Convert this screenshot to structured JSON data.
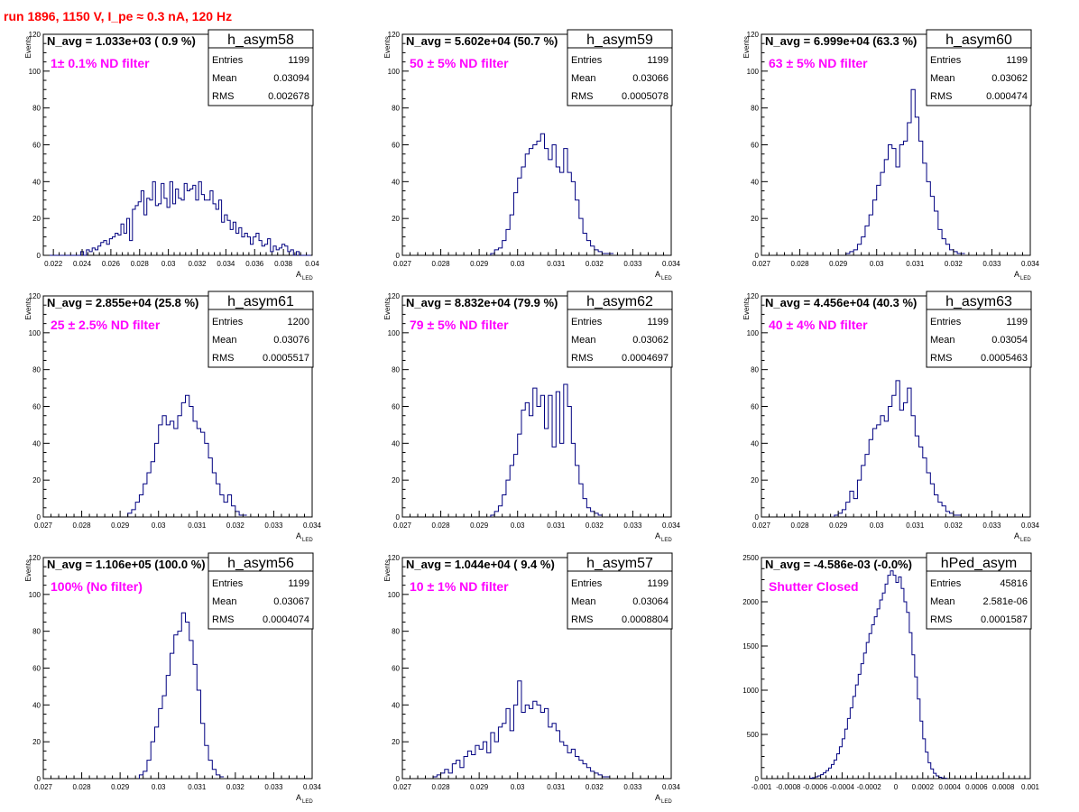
{
  "page_title": "run 1896,  1150 V, I_pe ≈ 0.3 nA, 120 Hz",
  "colors": {
    "title": "#ff0000",
    "annotation": "#ff00ff",
    "histogram": "#000080",
    "axis": "#000000"
  },
  "chart_data": [
    {
      "type": "histogram",
      "name": "h_asym58",
      "navg": "N_avg = 1.033e+03 ( 0.9 %)",
      "annotation": "1± 0.1% ND filter",
      "stats": {
        "entries": "1199",
        "mean": "0.03094",
        "rms": "0.002678"
      },
      "xlabel": "A",
      "xlabel_sub": "LED",
      "ylabel": "Events",
      "xlim": [
        0.0213,
        0.04
      ],
      "ylim": [
        0,
        120
      ],
      "xticks": [
        0.022,
        0.024,
        0.026,
        0.028,
        0.03,
        0.032,
        0.034,
        0.036,
        0.038,
        0.04
      ],
      "xtick_labels": [
        "0.022",
        "0.024",
        "0.026",
        "0.028",
        "0.03",
        "0.032",
        "0.034",
        "0.036",
        "0.038",
        "0.04"
      ],
      "yticks": [
        0,
        20,
        40,
        60,
        80,
        100,
        120
      ],
      "bin_start": 0.0213,
      "bin_width": 0.0002,
      "counts": [
        0,
        0,
        0,
        0,
        0,
        0,
        0,
        0,
        0,
        0,
        0,
        0,
        0,
        2,
        0,
        3,
        2,
        4,
        3,
        5,
        7,
        8,
        6,
        9,
        10,
        12,
        11,
        17,
        12,
        20,
        8,
        25,
        27,
        29,
        35,
        22,
        31,
        30,
        40,
        27,
        28,
        39,
        31,
        26,
        40,
        28,
        36,
        31,
        30,
        39,
        35,
        36,
        38,
        30,
        40,
        33,
        30,
        30,
        35,
        28,
        25,
        30,
        18,
        22,
        19,
        14,
        18,
        12,
        15,
        10,
        12,
        10,
        6,
        10,
        12,
        8,
        5,
        6,
        9,
        2,
        5,
        3,
        4,
        6,
        5,
        2,
        3,
        0,
        2,
        0,
        0,
        0,
        0
      ]
    },
    {
      "type": "histogram",
      "name": "h_asym59",
      "navg": "N_avg = 5.602e+04 (50.7 %)",
      "annotation": "50 ± 5% ND filter",
      "stats": {
        "entries": "1199",
        "mean": "0.03066",
        "rms": "0.0005078"
      },
      "xlabel": "A",
      "xlabel_sub": "LED",
      "ylabel": "Events",
      "xlim": [
        0.027,
        0.034
      ],
      "ylim": [
        0,
        120
      ],
      "xticks": [
        0.027,
        0.028,
        0.029,
        0.03,
        0.031,
        0.032,
        0.033,
        0.034
      ],
      "xtick_labels": [
        "0.027",
        "0.028",
        "0.029",
        "0.03",
        "0.031",
        "0.032",
        "0.033",
        "0.034"
      ],
      "yticks": [
        0,
        20,
        40,
        60,
        80,
        100,
        120
      ],
      "bin_start": 0.0293,
      "bin_width": 0.0001,
      "counts": [
        1,
        3,
        4,
        8,
        14,
        22,
        34,
        42,
        48,
        55,
        58,
        60,
        62,
        66,
        58,
        52,
        60,
        48,
        45,
        58,
        45,
        40,
        30,
        20,
        12,
        8,
        5,
        3,
        2,
        1,
        1,
        1
      ]
    },
    {
      "type": "histogram",
      "name": "h_asym60",
      "navg": "N_avg = 6.999e+04 (63.3 %)",
      "annotation": "63 ± 5% ND filter",
      "stats": {
        "entries": "1199",
        "mean": "0.03062",
        "rms": "0.000474"
      },
      "xlabel": "A",
      "xlabel_sub": "LED",
      "ylabel": "Events",
      "xlim": [
        0.027,
        0.034
      ],
      "ylim": [
        0,
        120
      ],
      "xticks": [
        0.027,
        0.028,
        0.029,
        0.03,
        0.031,
        0.032,
        0.033,
        0.034
      ],
      "xtick_labels": [
        "0.027",
        "0.028",
        "0.029",
        "0.03",
        "0.031",
        "0.032",
        "0.033",
        "0.034"
      ],
      "yticks": [
        0,
        20,
        40,
        60,
        80,
        100,
        120
      ],
      "bin_start": 0.0292,
      "bin_width": 0.0001,
      "counts": [
        1,
        2,
        3,
        6,
        10,
        16,
        22,
        30,
        38,
        45,
        52,
        60,
        58,
        48,
        60,
        62,
        72,
        90,
        75,
        62,
        50,
        40,
        32,
        24,
        14,
        9,
        6,
        3,
        2,
        1,
        1
      ]
    },
    {
      "type": "histogram",
      "name": "h_asym61",
      "navg": "N_avg = 2.855e+04 (25.8 %)",
      "annotation": "25 ± 2.5% ND filter",
      "stats": {
        "entries": "1200",
        "mean": "0.03076",
        "rms": "0.0005517"
      },
      "xlabel": "A",
      "xlabel_sub": "LED",
      "ylabel": "Events",
      "xlim": [
        0.027,
        0.034
      ],
      "ylim": [
        0,
        120
      ],
      "xticks": [
        0.027,
        0.028,
        0.029,
        0.03,
        0.031,
        0.032,
        0.033,
        0.034
      ],
      "xtick_labels": [
        "0.027",
        "0.028",
        "0.029",
        "0.03",
        "0.031",
        "0.032",
        "0.033",
        "0.034"
      ],
      "yticks": [
        0,
        20,
        40,
        60,
        80,
        100,
        120
      ],
      "bin_start": 0.0292,
      "bin_width": 0.0001,
      "counts": [
        2,
        4,
        8,
        12,
        18,
        24,
        30,
        40,
        50,
        55,
        50,
        52,
        48,
        55,
        62,
        66,
        60,
        52,
        48,
        46,
        40,
        32,
        24,
        18,
        12,
        8,
        12,
        6,
        3,
        1,
        1
      ]
    },
    {
      "type": "histogram",
      "name": "h_asym62",
      "navg": "N_avg = 8.832e+04 (79.9 %)",
      "annotation": "79 ± 5% ND filter",
      "stats": {
        "entries": "1199",
        "mean": "0.03062",
        "rms": "0.0004697"
      },
      "xlabel": "A",
      "xlabel_sub": "LED",
      "ylabel": "Events",
      "xlim": [
        0.027,
        0.034
      ],
      "ylim": [
        0,
        120
      ],
      "xticks": [
        0.027,
        0.028,
        0.029,
        0.03,
        0.031,
        0.032,
        0.033,
        0.034
      ],
      "xtick_labels": [
        "0.027",
        "0.028",
        "0.029",
        "0.03",
        "0.031",
        "0.032",
        "0.033",
        "0.034"
      ],
      "yticks": [
        0,
        20,
        40,
        60,
        80,
        100,
        120
      ],
      "bin_start": 0.0293,
      "bin_width": 0.0001,
      "counts": [
        1,
        3,
        6,
        12,
        20,
        28,
        34,
        45,
        58,
        62,
        55,
        70,
        60,
        66,
        48,
        66,
        38,
        68,
        40,
        72,
        60,
        40,
        28,
        18,
        10,
        5,
        3,
        2,
        1
      ]
    },
    {
      "type": "histogram",
      "name": "h_asym63",
      "navg": "N_avg = 4.456e+04 (40.3 %)",
      "annotation": "40 ± 4% ND filter",
      "stats": {
        "entries": "1199",
        "mean": "0.03054",
        "rms": "0.0005463"
      },
      "xlabel": "A",
      "xlabel_sub": "LED",
      "ylabel": "Events",
      "xlim": [
        0.027,
        0.034
      ],
      "ylim": [
        0,
        120
      ],
      "xticks": [
        0.027,
        0.028,
        0.029,
        0.03,
        0.031,
        0.032,
        0.033,
        0.034
      ],
      "xtick_labels": [
        "0.027",
        "0.028",
        "0.029",
        "0.03",
        "0.031",
        "0.032",
        "0.033",
        "0.034"
      ],
      "yticks": [
        0,
        20,
        40,
        60,
        80,
        100,
        120
      ],
      "bin_start": 0.0289,
      "bin_width": 0.0001,
      "counts": [
        1,
        2,
        4,
        8,
        14,
        10,
        20,
        28,
        34,
        42,
        48,
        50,
        55,
        52,
        60,
        66,
        74,
        58,
        62,
        70,
        55,
        44,
        38,
        32,
        24,
        18,
        12,
        8,
        6,
        3,
        2,
        1,
        1
      ]
    },
    {
      "type": "histogram",
      "name": "h_asym56",
      "navg": "N_avg = 1.106e+05 (100.0 %)",
      "annotation": "100% (No filter)",
      "stats": {
        "entries": "1199",
        "mean": "0.03067",
        "rms": "0.0004074"
      },
      "xlabel": "A",
      "xlabel_sub": "LED",
      "ylabel": "Events",
      "xlim": [
        0.027,
        0.034
      ],
      "ylim": [
        0,
        120
      ],
      "xticks": [
        0.027,
        0.028,
        0.029,
        0.03,
        0.031,
        0.032,
        0.033,
        0.034
      ],
      "xtick_labels": [
        "0.027",
        "0.028",
        "0.029",
        "0.03",
        "0.031",
        "0.032",
        "0.033",
        "0.034"
      ],
      "yticks": [
        0,
        20,
        40,
        60,
        80,
        100,
        120
      ],
      "bin_start": 0.0295,
      "bin_width": 0.0001,
      "counts": [
        2,
        4,
        10,
        20,
        28,
        38,
        45,
        56,
        68,
        78,
        80,
        90,
        85,
        75,
        62,
        48,
        30,
        18,
        10,
        5,
        2,
        1
      ]
    },
    {
      "type": "histogram",
      "name": "h_asym57",
      "navg": "N_avg = 1.044e+04 ( 9.4 %)",
      "annotation": "10 ± 1% ND filter",
      "stats": {
        "entries": "1199",
        "mean": "0.03064",
        "rms": "0.0008804"
      },
      "xlabel": "A",
      "xlabel_sub": "LED",
      "ylabel": "Events",
      "xlim": [
        0.027,
        0.034
      ],
      "ylim": [
        0,
        120
      ],
      "xticks": [
        0.027,
        0.028,
        0.029,
        0.03,
        0.031,
        0.032,
        0.033,
        0.034
      ],
      "xtick_labels": [
        "0.027",
        "0.028",
        "0.029",
        "0.03",
        "0.031",
        "0.032",
        "0.033",
        "0.034"
      ],
      "yticks": [
        0,
        20,
        40,
        60,
        80,
        100,
        120
      ],
      "bin_start": 0.0278,
      "bin_width": 0.0001,
      "counts": [
        1,
        2,
        3,
        5,
        3,
        8,
        10,
        6,
        12,
        15,
        13,
        18,
        16,
        20,
        14,
        25,
        20,
        28,
        30,
        38,
        26,
        40,
        53,
        36,
        40,
        38,
        42,
        40,
        36,
        38,
        28,
        30,
        26,
        20,
        18,
        14,
        16,
        12,
        10,
        8,
        6,
        4,
        3,
        2,
        1,
        1
      ]
    },
    {
      "type": "histogram",
      "name": "hPed_asym",
      "navg": "N_avg = -4.586e-03 (-0.0%)",
      "annotation": "Shutter Closed",
      "stats": {
        "entries": "45816",
        "mean": "2.581e-06",
        "rms": "0.0001587"
      },
      "xlabel": "",
      "xlabel_sub": "",
      "ylabel": "",
      "xlim": [
        -0.001,
        0.001
      ],
      "ylim": [
        0,
        2500
      ],
      "xticks": [
        -0.001,
        -0.0008,
        -0.0006,
        -0.0004,
        -0.0002,
        0,
        0.0002,
        0.0004,
        0.0006,
        0.0008,
        0.001
      ],
      "xtick_labels": [
        "-0.001",
        "-0.0008",
        "-0.0006",
        "-0.0004",
        "-0.0002",
        "0",
        "0.0002",
        "0.0004",
        "0.0006",
        "0.0008",
        "0.001"
      ],
      "yticks": [
        0,
        500,
        1000,
        1500,
        2000,
        2500
      ],
      "bin_start": -0.00064,
      "bin_width": 2e-05,
      "counts": [
        5,
        10,
        20,
        30,
        45,
        65,
        90,
        120,
        160,
        210,
        280,
        360,
        450,
        560,
        680,
        800,
        930,
        1060,
        1180,
        1300,
        1420,
        1540,
        1640,
        1740,
        1830,
        1920,
        2020,
        2100,
        2200,
        2300,
        2350,
        2300,
        2220,
        2280,
        2150,
        2000,
        1880,
        1650,
        1400,
        1150,
        900,
        650,
        450,
        300,
        180,
        110,
        60,
        30,
        15,
        8,
        4
      ]
    }
  ]
}
